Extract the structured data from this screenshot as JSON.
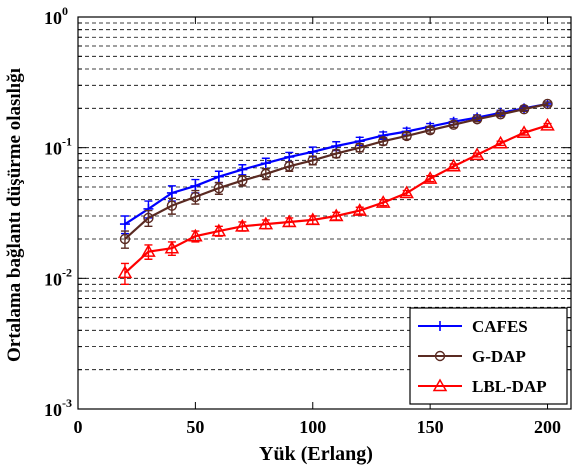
{
  "chart_data": {
    "type": "line",
    "xlabel": "Yük (Erlang)",
    "ylabel": "Ortalama bağlantı düşürme olasılığı",
    "xlim": [
      0,
      210
    ],
    "ylim": [
      0.001,
      1
    ],
    "yscale": "log",
    "grid": "y-major-and-minor dashed",
    "legend_position": "bottom-right",
    "x_ticks": [
      "0",
      "50",
      "100",
      "150",
      "200"
    ],
    "y_ticks": [
      {
        "base": "10",
        "exp": "-3",
        "value": 0.001
      },
      {
        "base": "10",
        "exp": "-2",
        "value": 0.01
      },
      {
        "base": "10",
        "exp": "-1",
        "value": 0.1
      },
      {
        "base": "10",
        "exp": "0",
        "value": 1
      }
    ],
    "x": [
      20,
      30,
      40,
      50,
      60,
      70,
      80,
      90,
      100,
      110,
      120,
      130,
      140,
      150,
      160,
      170,
      180,
      190,
      200
    ],
    "series": [
      {
        "name": "CAFES",
        "color": "#0000ff",
        "marker": "plus",
        "values": [
          0.026,
          0.034,
          0.045,
          0.051,
          0.06,
          0.068,
          0.076,
          0.085,
          0.093,
          0.103,
          0.112,
          0.124,
          0.133,
          0.145,
          0.158,
          0.17,
          0.185,
          0.2,
          0.216
        ],
        "err": [
          0.004,
          0.005,
          0.006,
          0.006,
          0.006,
          0.006,
          0.007,
          0.007,
          0.008,
          0.008,
          0.008,
          0.008,
          0.008,
          0.008,
          0.008,
          0.008,
          0.008,
          0.008,
          0.008
        ]
      },
      {
        "name": "G-DAP",
        "color": "#5a2a22",
        "marker": "circle",
        "values": [
          0.02,
          0.029,
          0.036,
          0.042,
          0.049,
          0.056,
          0.063,
          0.072,
          0.08,
          0.09,
          0.1,
          0.112,
          0.123,
          0.136,
          0.15,
          0.165,
          0.18,
          0.197,
          0.216
        ],
        "err": [
          0.003,
          0.004,
          0.005,
          0.005,
          0.005,
          0.005,
          0.006,
          0.006,
          0.006,
          0.006,
          0.007,
          0.007,
          0.007,
          0.007,
          0.007,
          0.007,
          0.007,
          0.007,
          0.007
        ]
      },
      {
        "name": "LBL-DAP",
        "color": "#ff0000",
        "marker": "triangle",
        "values": [
          0.011,
          0.016,
          0.017,
          0.021,
          0.023,
          0.025,
          0.026,
          0.027,
          0.028,
          0.03,
          0.033,
          0.038,
          0.045,
          0.058,
          0.072,
          0.088,
          0.108,
          0.13,
          0.148
        ],
        "err": [
          0.002,
          0.002,
          0.002,
          0.002,
          0.002,
          0.002,
          0.002,
          0.002,
          0.002,
          0.002,
          0.002,
          0.002,
          0.002,
          0.003,
          0.003,
          0.003,
          0.004,
          0.005,
          0.005
        ]
      }
    ]
  }
}
